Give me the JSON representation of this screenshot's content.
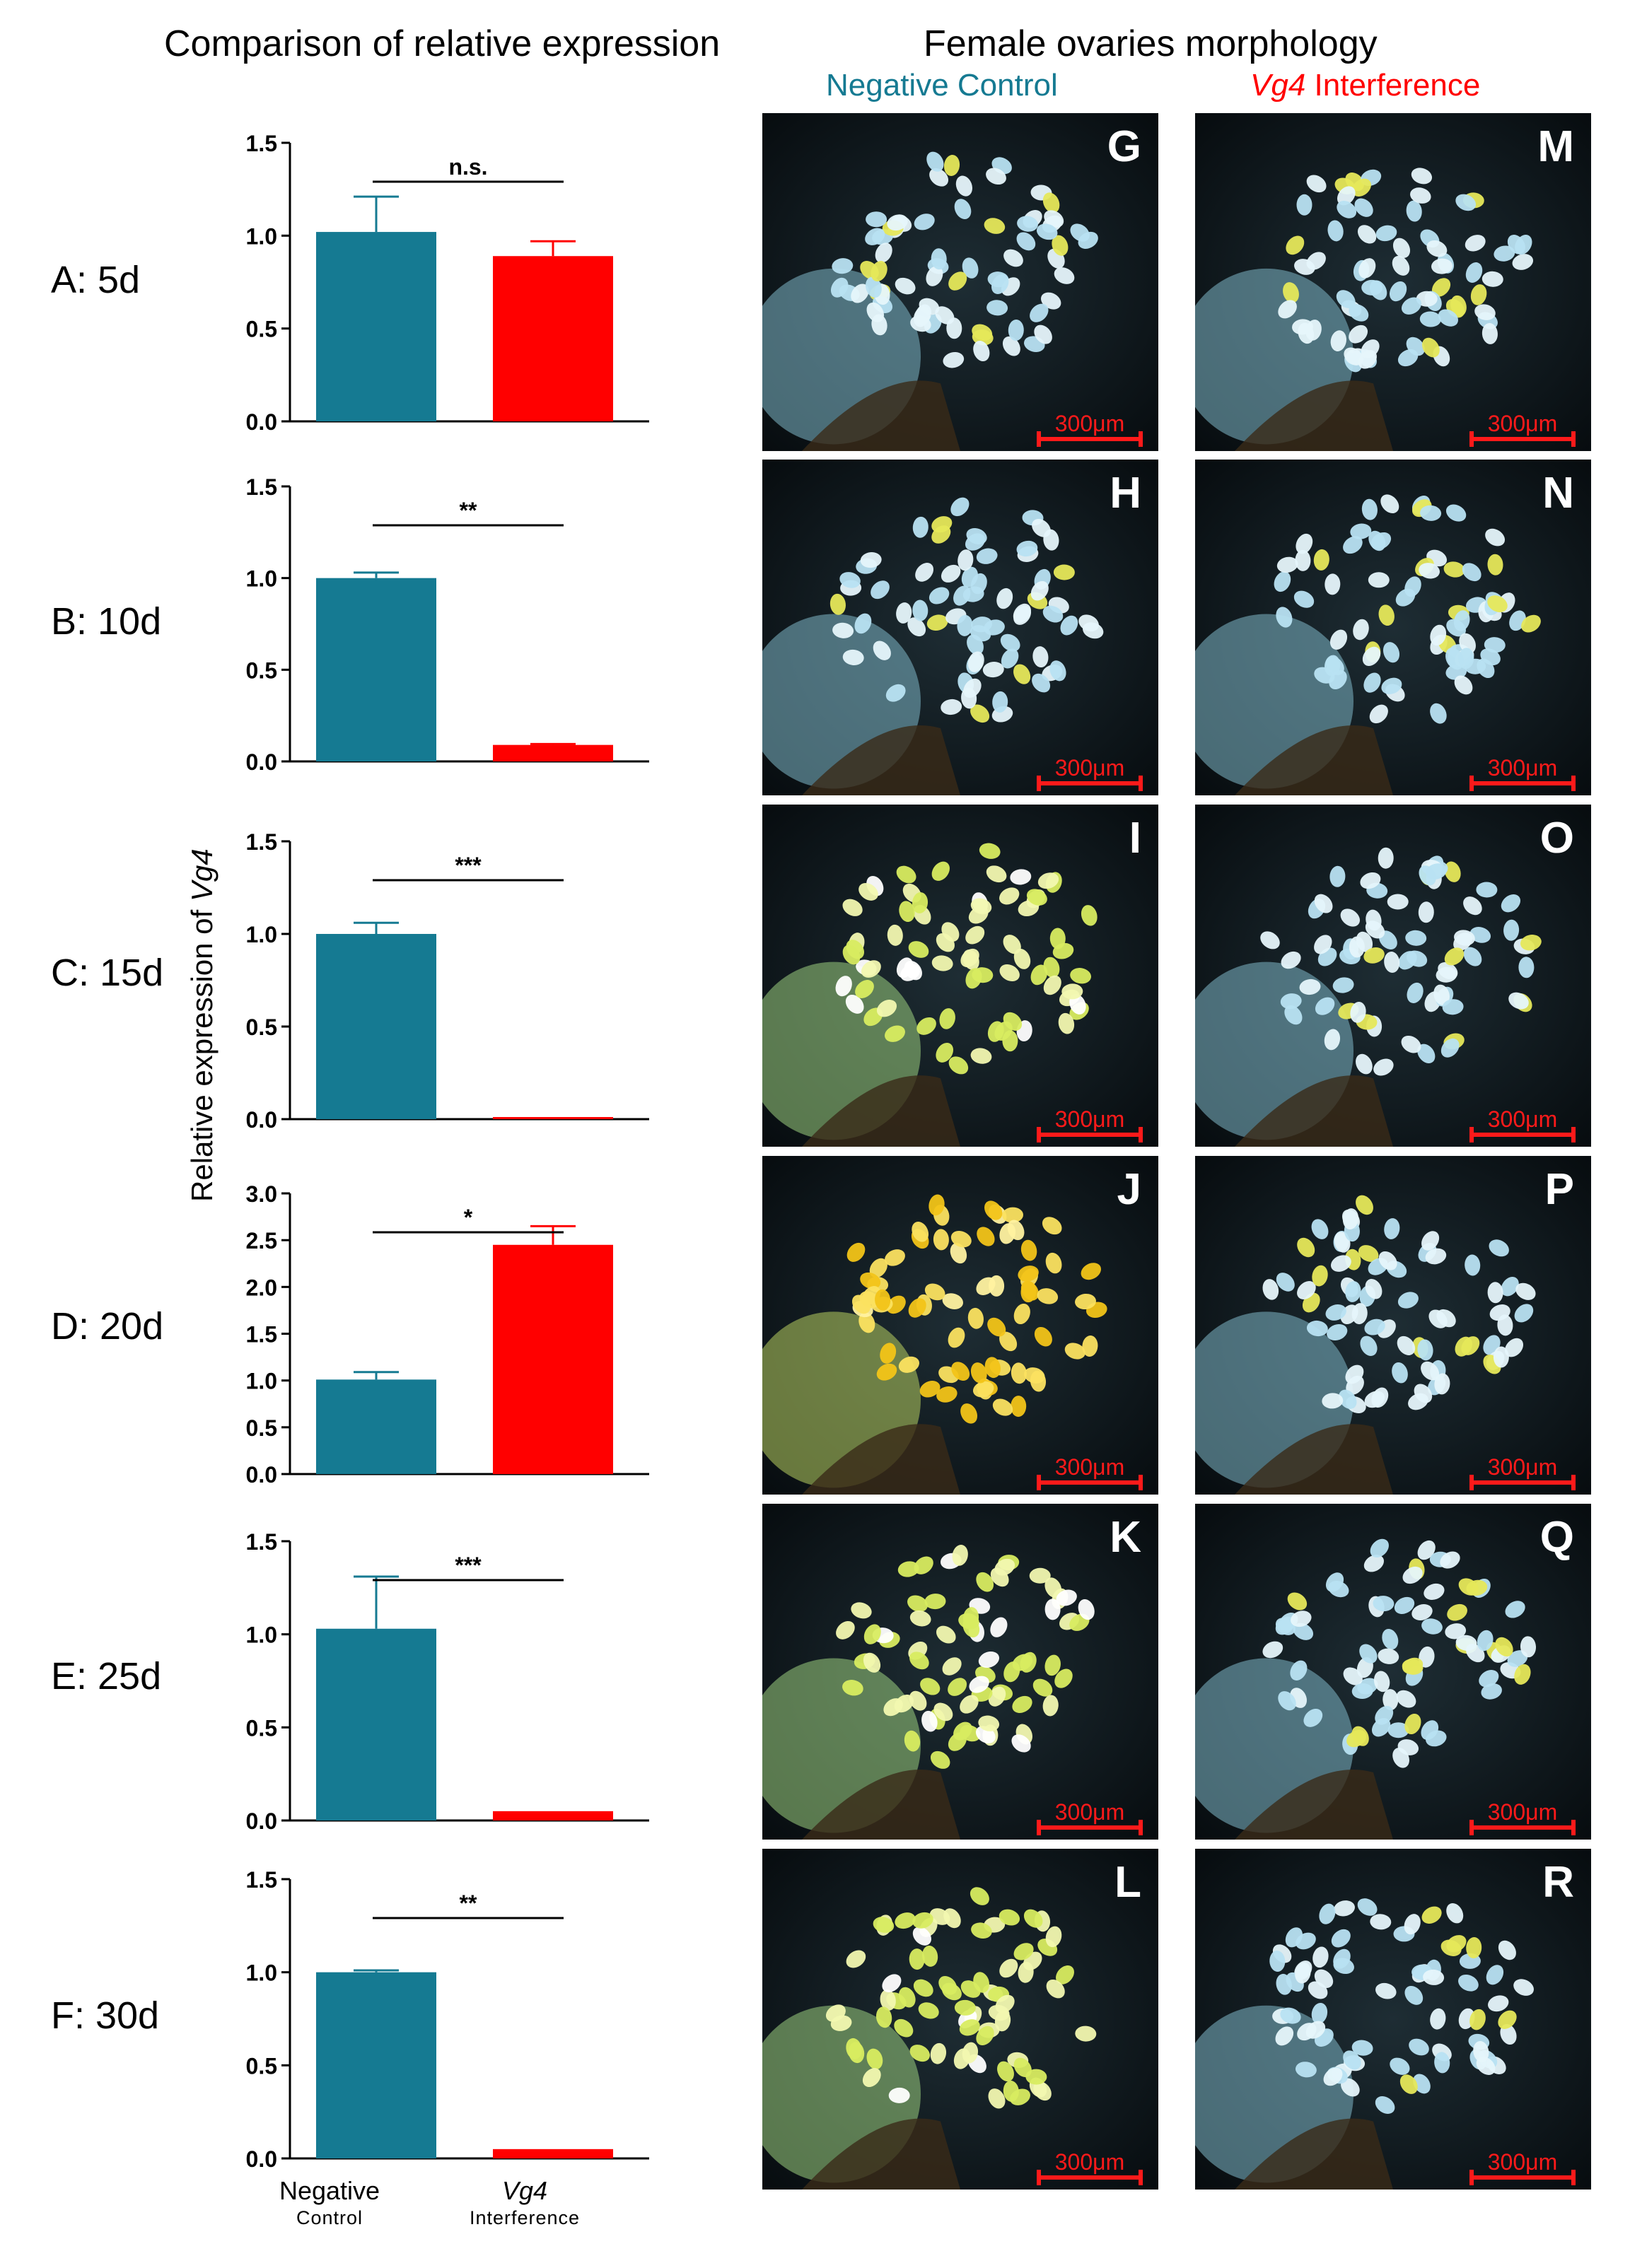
{
  "headers": {
    "left_title": "Comparison of relative expression",
    "right_title": "Female ovaries morphology",
    "negative_control": "Negative Control",
    "vg4_italic": "Vg4",
    "interference": " Interference"
  },
  "y_axis_label_prefix": "Relative expression of ",
  "y_axis_label_gene": "Vg4",
  "x_labels": {
    "group1_main": "Negative",
    "group1_sub": "Control",
    "group2_main": "Vg4",
    "group2_sub": "Interference"
  },
  "colors": {
    "negative_control": "#157A92",
    "interference": "#FF0000",
    "scale_bar": "#FF1A1A"
  },
  "chart_data": [
    {
      "type": "bar",
      "panel": "A: 5d",
      "categories": [
        "Negative Control",
        "Vg4 Interference"
      ],
      "values": [
        1.02,
        0.89
      ],
      "errors": [
        0.19,
        0.08
      ],
      "ylim": [
        0,
        1.5
      ],
      "ticks": [
        "0.0",
        "0.5",
        "1.0",
        "1.5"
      ],
      "significance": "n.s."
    },
    {
      "type": "bar",
      "panel": "B: 10d",
      "categories": [
        "Negative Control",
        "Vg4 Interference"
      ],
      "values": [
        1.0,
        0.09
      ],
      "errors": [
        0.03,
        0.005
      ],
      "ylim": [
        0,
        1.5
      ],
      "ticks": [
        "0.0",
        "0.5",
        "1.0",
        "1.5"
      ],
      "significance": "**"
    },
    {
      "type": "bar",
      "panel": "C: 15d",
      "categories": [
        "Negative Control",
        "Vg4 Interference"
      ],
      "values": [
        1.0,
        0.01
      ],
      "errors": [
        0.06,
        0.002
      ],
      "ylim": [
        0,
        1.5
      ],
      "ticks": [
        "0.0",
        "0.5",
        "1.0",
        "1.5"
      ],
      "significance": "***"
    },
    {
      "type": "bar",
      "panel": "D: 20d",
      "categories": [
        "Negative Control",
        "Vg4 Interference"
      ],
      "values": [
        1.01,
        2.45
      ],
      "errors": [
        0.08,
        0.2
      ],
      "ylim": [
        0,
        3.0
      ],
      "ticks": [
        "0.0",
        "0.5",
        "1.0",
        "1.5",
        "2.0",
        "2.5",
        "3.0"
      ],
      "significance": "*"
    },
    {
      "type": "bar",
      "panel": "E: 25d",
      "categories": [
        "Negative Control",
        "Vg4 Interference"
      ],
      "values": [
        1.03,
        0.05
      ],
      "errors": [
        0.28,
        0.003
      ],
      "ylim": [
        0,
        1.5
      ],
      "ticks": [
        "0.0",
        "0.5",
        "1.0",
        "1.5"
      ],
      "significance": "***"
    },
    {
      "type": "bar",
      "panel": "F: 30d",
      "categories": [
        "Negative Control",
        "Vg4 Interference"
      ],
      "values": [
        1.0,
        0.05
      ],
      "errors": [
        0.01,
        0.003
      ],
      "ylim": [
        0,
        1.5
      ],
      "ticks": [
        "0.0",
        "0.5",
        "1.0",
        "1.5"
      ],
      "significance": "**"
    }
  ],
  "photos": [
    {
      "letter": "G",
      "scale": "300μm",
      "tone": "blue"
    },
    {
      "letter": "M",
      "scale": "300μm",
      "tone": "blue"
    },
    {
      "letter": "H",
      "scale": "300μm",
      "tone": "blue"
    },
    {
      "letter": "N",
      "scale": "300μm",
      "tone": "blue"
    },
    {
      "letter": "I",
      "scale": "300μm",
      "tone": "yellow"
    },
    {
      "letter": "O",
      "scale": "300μm",
      "tone": "blue"
    },
    {
      "letter": "J",
      "scale": "300μm",
      "tone": "orange"
    },
    {
      "letter": "P",
      "scale": "300μm",
      "tone": "blue"
    },
    {
      "letter": "K",
      "scale": "300μm",
      "tone": "yellow"
    },
    {
      "letter": "Q",
      "scale": "300μm",
      "tone": "blue"
    },
    {
      "letter": "L",
      "scale": "300μm",
      "tone": "yellow"
    },
    {
      "letter": "R",
      "scale": "300μm",
      "tone": "blue"
    }
  ]
}
